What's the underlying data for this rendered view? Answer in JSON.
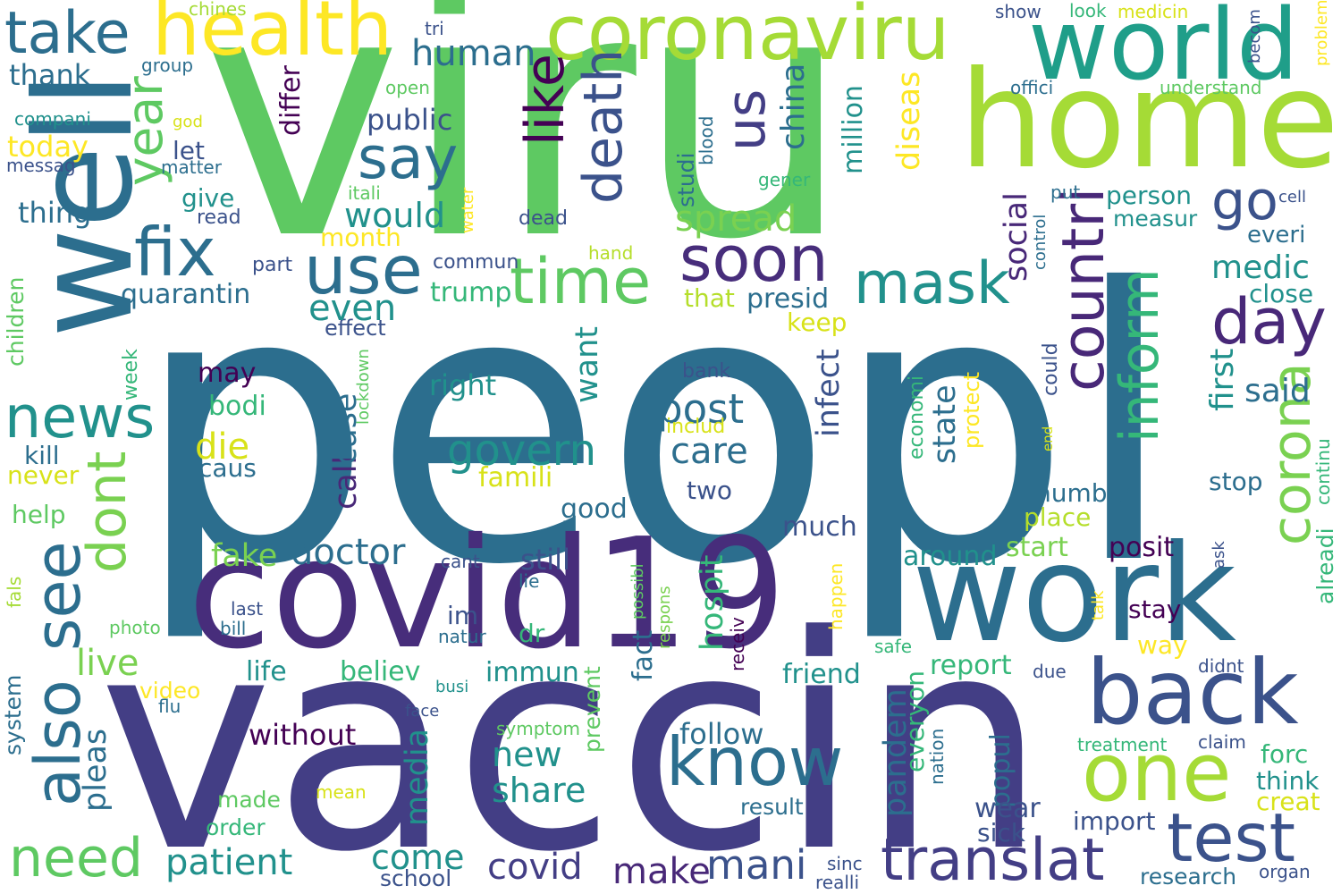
{
  "words": [
    {
      "text": "viru",
      "color": "#5ec962"
    },
    {
      "text": "peopl",
      "color": "#2c6e8e"
    },
    {
      "text": "vaccin",
      "color": "#433e85"
    },
    {
      "text": "covid19",
      "color": "#472d7b"
    },
    {
      "text": "home",
      "color": "#a5db36"
    },
    {
      "text": "work",
      "color": "#2c6e8e"
    },
    {
      "text": "well",
      "color": "#2c6e8e"
    },
    {
      "text": "world",
      "color": "#1f9e89"
    },
    {
      "text": "coronaviru",
      "color": "#a5db36"
    },
    {
      "text": "health",
      "color": "#fde725"
    },
    {
      "text": "take",
      "color": "#2c6e8e"
    },
    {
      "text": "back",
      "color": "#3b528b"
    },
    {
      "text": "one",
      "color": "#a5db36"
    },
    {
      "text": "test",
      "color": "#3b528b"
    },
    {
      "text": "translat",
      "color": "#433e85"
    },
    {
      "text": "know",
      "color": "#2c6e8e"
    },
    {
      "text": "need",
      "color": "#5ec962"
    },
    {
      "text": "also",
      "color": "#2c6e8e"
    },
    {
      "text": "see",
      "color": "#2c6e8e"
    },
    {
      "text": "news",
      "color": "#21918c"
    },
    {
      "text": "fix",
      "color": "#2c6e8e"
    },
    {
      "text": "use",
      "color": "#2c6e8e"
    },
    {
      "text": "time",
      "color": "#5ec962"
    },
    {
      "text": "soon",
      "color": "#472d7b"
    },
    {
      "text": "mask",
      "color": "#21918c"
    },
    {
      "text": "day",
      "color": "#482878"
    },
    {
      "text": "death",
      "color": "#3b528b"
    },
    {
      "text": "like",
      "color": "#440154"
    },
    {
      "text": "us",
      "color": "#433e85"
    },
    {
      "text": "say",
      "color": "#2c6e8e"
    },
    {
      "text": "year",
      "color": "#5ec962"
    },
    {
      "text": "dont",
      "color": "#7ad151"
    },
    {
      "text": "countri",
      "color": "#482878"
    },
    {
      "text": "inform",
      "color": "#35b779"
    },
    {
      "text": "corona",
      "color": "#7ad151"
    },
    {
      "text": "go",
      "color": "#3b528b"
    },
    {
      "text": "human",
      "color": "#2c6e8e"
    },
    {
      "text": "thank",
      "color": "#2c6e8e"
    },
    {
      "text": "today",
      "color": "#fde725"
    },
    {
      "text": "thing",
      "color": "#2c6e8e"
    },
    {
      "text": "public",
      "color": "#3b528b"
    },
    {
      "text": "would",
      "color": "#21918c"
    },
    {
      "text": "spread",
      "color": "#7ad151"
    },
    {
      "text": "govern",
      "color": "#21918c"
    },
    {
      "text": "post",
      "color": "#2c6e8e"
    },
    {
      "text": "care",
      "color": "#2c6e8e"
    },
    {
      "text": "die",
      "color": "#d8e219"
    },
    {
      "text": "call",
      "color": "#482878"
    },
    {
      "text": "case",
      "color": "#2c6e8e"
    },
    {
      "text": "infect",
      "color": "#3b528b"
    },
    {
      "text": "social",
      "color": "#482878"
    },
    {
      "text": "state",
      "color": "#2c6e8e"
    },
    {
      "text": "medic",
      "color": "#21918c"
    },
    {
      "text": "said",
      "color": "#2c6e8e"
    },
    {
      "text": "first",
      "color": "#21918c"
    },
    {
      "text": "alreadi",
      "color": "#35b779"
    },
    {
      "text": "patient",
      "color": "#21918c"
    },
    {
      "text": "doctor",
      "color": "#2c6e8e"
    },
    {
      "text": "covid",
      "color": "#433e85"
    },
    {
      "text": "make",
      "color": "#482878"
    },
    {
      "text": "mani",
      "color": "#3b528b"
    },
    {
      "text": "come",
      "color": "#21918c"
    },
    {
      "text": "share",
      "color": "#21918c"
    },
    {
      "text": "new",
      "color": "#21918c"
    },
    {
      "text": "media",
      "color": "#21918c"
    },
    {
      "text": "live",
      "color": "#7ad151"
    },
    {
      "text": "pleas",
      "color": "#2c6e8e"
    },
    {
      "text": "hospit",
      "color": "#35b779"
    },
    {
      "text": "pandem",
      "color": "#2c6e8e"
    },
    {
      "text": "everyon",
      "color": "#35b779"
    },
    {
      "text": "popul",
      "color": "#2c6e8e"
    },
    {
      "text": "friend",
      "color": "#21918c"
    },
    {
      "text": "follow",
      "color": "#2c6e8e"
    },
    {
      "text": "fact",
      "color": "#2c6e8e"
    },
    {
      "text": "report",
      "color": "#35b779"
    },
    {
      "text": "wear",
      "color": "#3b528b"
    },
    {
      "text": "sick",
      "color": "#3b528b"
    },
    {
      "text": "import",
      "color": "#3b528b"
    },
    {
      "text": "research",
      "color": "#2c6e8e"
    },
    {
      "text": "forc",
      "color": "#35b779"
    },
    {
      "text": "think",
      "color": "#21918c"
    },
    {
      "text": "creat",
      "color": "#d8e219"
    },
    {
      "text": "stay",
      "color": "#440154"
    },
    {
      "text": "way",
      "color": "#fde725"
    },
    {
      "text": "posit",
      "color": "#440154"
    },
    {
      "text": "start",
      "color": "#7ad151"
    },
    {
      "text": "around",
      "color": "#21918c"
    },
    {
      "text": "place",
      "color": "#b5de2b"
    },
    {
      "text": "number",
      "color": "#2c6e8e"
    },
    {
      "text": "stop",
      "color": "#2c6e8e"
    },
    {
      "text": "close",
      "color": "#21918c"
    },
    {
      "text": "everi",
      "color": "#2c6e8e"
    },
    {
      "text": "person",
      "color": "#21918c"
    },
    {
      "text": "measur",
      "color": "#21918c"
    },
    {
      "text": "cell",
      "color": "#3b528b"
    },
    {
      "text": "put",
      "color": "#2c6e8e"
    },
    {
      "text": "keep",
      "color": "#d8e219"
    },
    {
      "text": "presid",
      "color": "#2c6e8e"
    },
    {
      "text": "that",
      "color": "#b5de2b"
    },
    {
      "text": "much",
      "color": "#3b528b"
    },
    {
      "text": "want",
      "color": "#21918c"
    },
    {
      "text": "right",
      "color": "#21918c"
    },
    {
      "text": "bodi",
      "color": "#35b779"
    },
    {
      "text": "caus",
      "color": "#2c6e8e"
    },
    {
      "text": "famili",
      "color": "#d8e219"
    },
    {
      "text": "good",
      "color": "#2c6e8e"
    },
    {
      "text": "two",
      "color": "#3b528b"
    },
    {
      "text": "includ",
      "color": "#d8e219"
    },
    {
      "text": "bank",
      "color": "#3b528b"
    },
    {
      "text": "still",
      "color": "#3b528b"
    },
    {
      "text": "fake",
      "color": "#7ad151"
    },
    {
      "text": "im",
      "color": "#3b528b"
    },
    {
      "text": "dr",
      "color": "#35b779"
    },
    {
      "text": "immun",
      "color": "#21918c"
    },
    {
      "text": "believ",
      "color": "#35b779"
    },
    {
      "text": "life",
      "color": "#21918c"
    },
    {
      "text": "without",
      "color": "#440154"
    },
    {
      "text": "may",
      "color": "#440154"
    },
    {
      "text": "effect",
      "color": "#3b528b"
    },
    {
      "text": "quarantin",
      "color": "#2c6e8e"
    },
    {
      "text": "part",
      "color": "#3b528b"
    },
    {
      "text": "trump",
      "color": "#35b779"
    },
    {
      "text": "even",
      "color": "#21918c"
    },
    {
      "text": "month",
      "color": "#fde725"
    },
    {
      "text": "commun",
      "color": "#3b528b"
    },
    {
      "text": "hand",
      "color": "#b5de2b"
    },
    {
      "text": "dead",
      "color": "#3b528b"
    },
    {
      "text": "itali",
      "color": "#5ec962"
    },
    {
      "text": "water",
      "color": "#fde725"
    },
    {
      "text": "read",
      "color": "#3b528b"
    },
    {
      "text": "give",
      "color": "#21918c"
    },
    {
      "text": "let",
      "color": "#3b528b"
    },
    {
      "text": "matter",
      "color": "#2c6e8e"
    },
    {
      "text": "god",
      "color": "#d8e219"
    },
    {
      "text": "compani",
      "color": "#21918c"
    },
    {
      "text": "messag",
      "color": "#3b528b"
    },
    {
      "text": "group",
      "color": "#2c6e8e"
    },
    {
      "text": "open",
      "color": "#5ec962"
    },
    {
      "text": "chines",
      "color": "#a5db36"
    },
    {
      "text": "tri",
      "color": "#3b528b"
    },
    {
      "text": "differ",
      "color": "#440154"
    },
    {
      "text": "studi",
      "color": "#2c6e8e"
    },
    {
      "text": "blood",
      "color": "#2c6e8e"
    },
    {
      "text": "gener",
      "color": "#35b779"
    },
    {
      "text": "million",
      "color": "#21918c"
    },
    {
      "text": "diseas",
      "color": "#fde725"
    },
    {
      "text": "china",
      "color": "#2c6e8e"
    },
    {
      "text": "show",
      "color": "#3b528b"
    },
    {
      "text": "look",
      "color": "#35b779"
    },
    {
      "text": "medicin",
      "color": "#d8e219"
    },
    {
      "text": "becom",
      "color": "#3b528b"
    },
    {
      "text": "problem",
      "color": "#fde725"
    },
    {
      "text": "offici",
      "color": "#2c6e8e"
    },
    {
      "text": "understand",
      "color": "#5ec962"
    },
    {
      "text": "children",
      "color": "#5ec962"
    },
    {
      "text": "week",
      "color": "#35b779"
    },
    {
      "text": "kill",
      "color": "#2c6e8e"
    },
    {
      "text": "never",
      "color": "#d8e219"
    },
    {
      "text": "help",
      "color": "#5ec962"
    },
    {
      "text": "fals",
      "color": "#a5db36"
    },
    {
      "text": "photo",
      "color": "#5ec962"
    },
    {
      "text": "system",
      "color": "#2c6e8e"
    },
    {
      "text": "last",
      "color": "#3b528b"
    },
    {
      "text": "bill",
      "color": "#2c6e8e"
    },
    {
      "text": "video",
      "color": "#fde725"
    },
    {
      "text": "flu",
      "color": "#2c6e8e"
    },
    {
      "text": "made",
      "color": "#5ec962"
    },
    {
      "text": "mean",
      "color": "#d8e219"
    },
    {
      "text": "order",
      "color": "#35b779"
    },
    {
      "text": "school",
      "color": "#3b528b"
    },
    {
      "text": "cant",
      "color": "#3b528b"
    },
    {
      "text": "lie",
      "color": "#2c6e8e"
    },
    {
      "text": "natur",
      "color": "#2c6e8e"
    },
    {
      "text": "busi",
      "color": "#21918c"
    },
    {
      "text": "face",
      "color": "#3b528b"
    },
    {
      "text": "symptom",
      "color": "#5ec962"
    },
    {
      "text": "prevent",
      "color": "#5ec962"
    },
    {
      "text": "possibl",
      "color": "#5ec962"
    },
    {
      "text": "respons",
      "color": "#7ad151"
    },
    {
      "text": "receiv",
      "color": "#440154"
    },
    {
      "text": "happen",
      "color": "#fde725"
    },
    {
      "text": "safe",
      "color": "#35b779"
    },
    {
      "text": "due",
      "color": "#3b528b"
    },
    {
      "text": "didnt",
      "color": "#3b528b"
    },
    {
      "text": "nation",
      "color": "#2c6e8e"
    },
    {
      "text": "treatment",
      "color": "#35b779"
    },
    {
      "text": "claim",
      "color": "#3b528b"
    },
    {
      "text": "result",
      "color": "#2c6e8e"
    },
    {
      "text": "sinc",
      "color": "#3b528b"
    },
    {
      "text": "realli",
      "color": "#3b528b"
    },
    {
      "text": "organ",
      "color": "#3b528b"
    },
    {
      "text": "talk",
      "color": "#fde725"
    },
    {
      "text": "ask",
      "color": "#3b528b"
    },
    {
      "text": "lockdown",
      "color": "#5ec962"
    },
    {
      "text": "could",
      "color": "#3b528b"
    },
    {
      "text": "end",
      "color": "#d8e219"
    },
    {
      "text": "economi",
      "color": "#35b779"
    },
    {
      "text": "protect",
      "color": "#fde725"
    },
    {
      "text": "control",
      "color": "#2c6e8e"
    },
    {
      "text": "continu",
      "color": "#35b779"
    }
  ]
}
